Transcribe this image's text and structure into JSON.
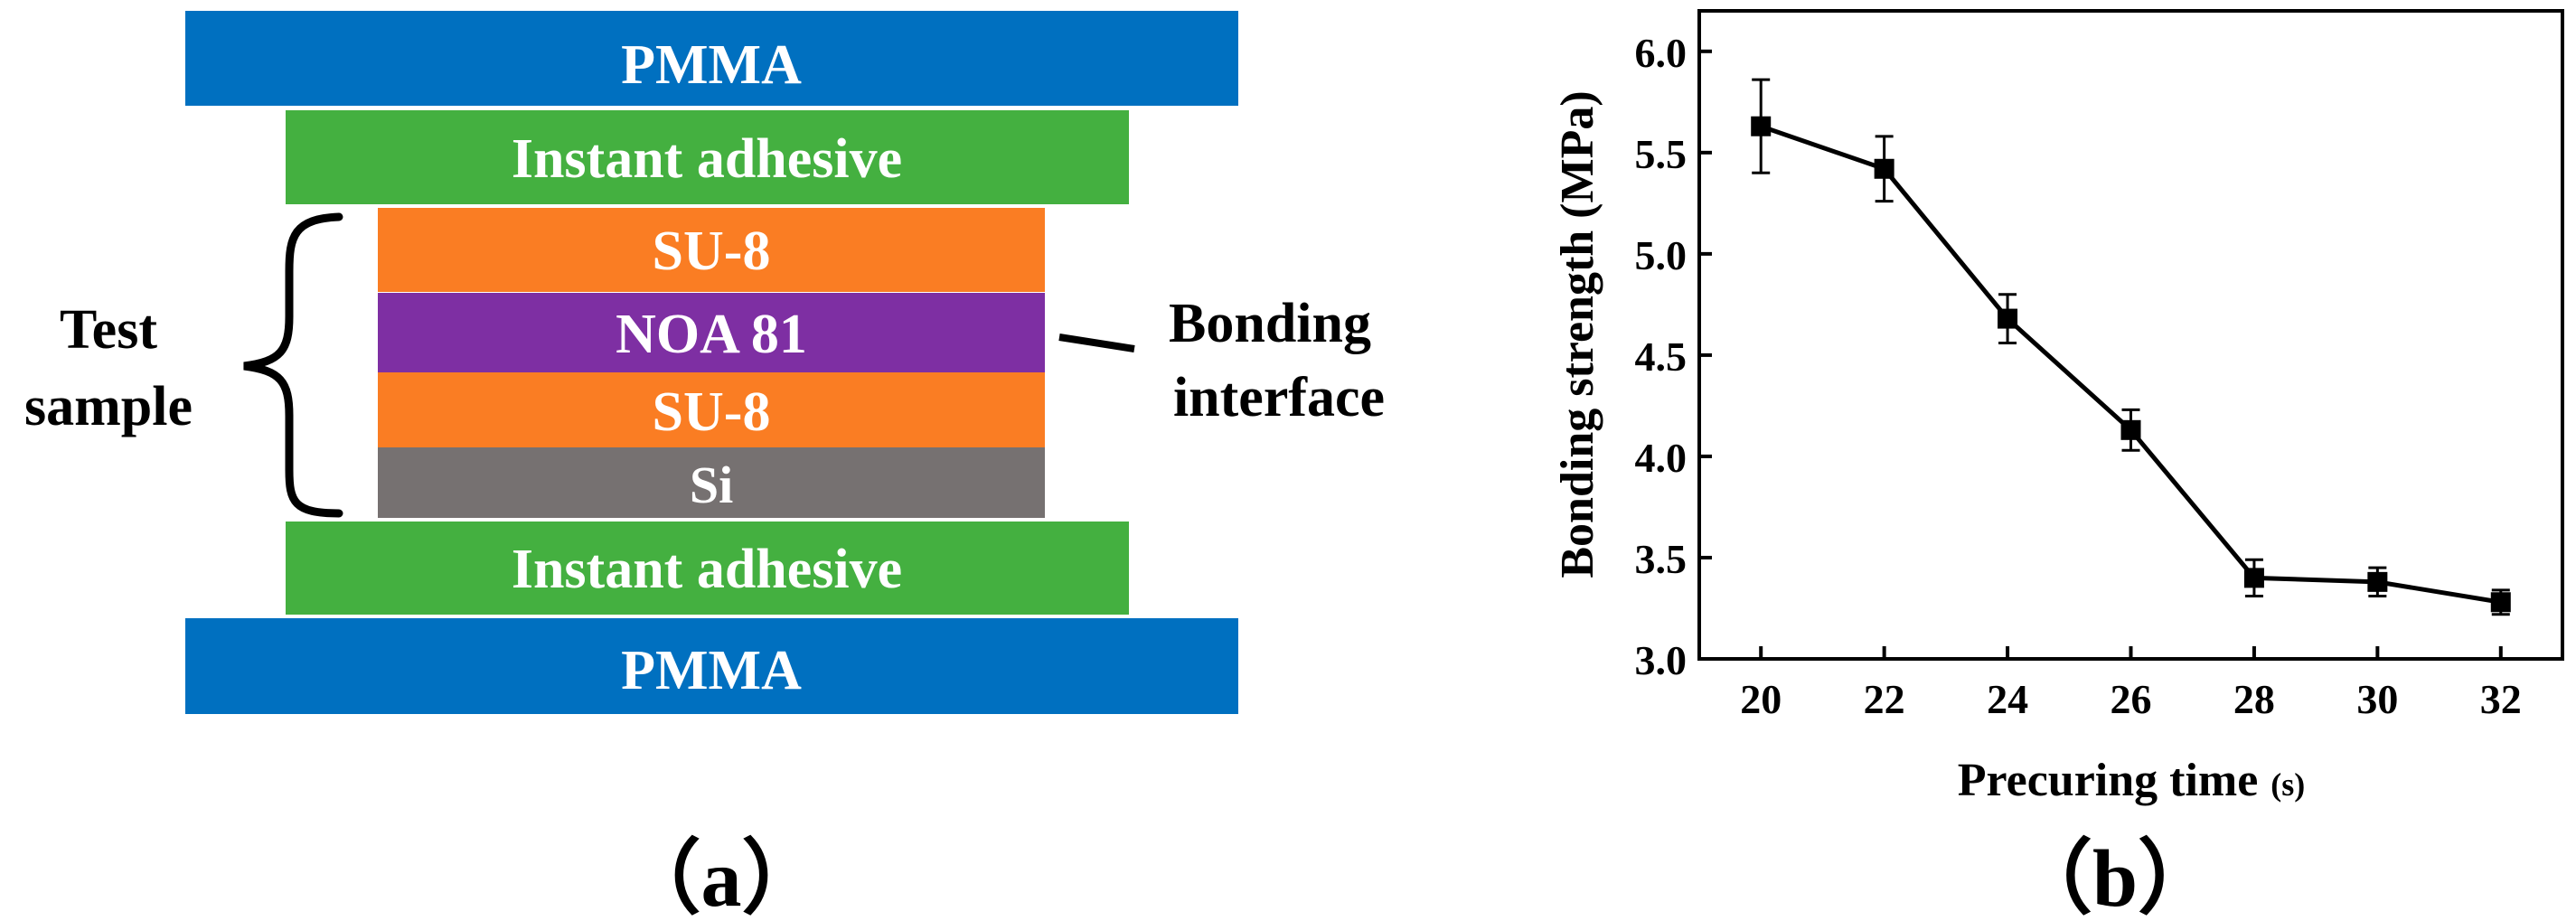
{
  "panel_a": {
    "layers": [
      {
        "id": "pmma-top",
        "label": "PMMA",
        "color": "#0070C0"
      },
      {
        "id": "adhesive-top",
        "label": "Instant adhesive",
        "color": "#44B040"
      },
      {
        "id": "su8-top",
        "label": "SU-8",
        "color": "#FA7D23"
      },
      {
        "id": "noa81",
        "label": "NOA 81",
        "color": "#7E2FA3"
      },
      {
        "id": "su8-bottom",
        "label": "SU-8",
        "color": "#FA7D23"
      },
      {
        "id": "si",
        "label": "Si",
        "color": "#767171"
      },
      {
        "id": "adhesive-bottom",
        "label": "Instant adhesive",
        "color": "#44B040"
      },
      {
        "id": "pmma-bottom",
        "label": "PMMA",
        "color": "#0070C0"
      }
    ],
    "test_sample_label": [
      "Test",
      "sample"
    ],
    "bonding_interface_label": [
      "Bonding",
      "interface"
    ],
    "caption": "（a）"
  },
  "panel_b": {
    "caption": "（b）"
  },
  "chart_data": {
    "type": "line",
    "title": "",
    "xlabel": "Precuring time",
    "xlabel_unit": "(s)",
    "ylabel": "Bonding strength (MPa)",
    "xlim": [
      19,
      33
    ],
    "ylim": [
      3.0,
      6.2
    ],
    "xticks": [
      20,
      22,
      24,
      26,
      28,
      30,
      32
    ],
    "yticks": [
      3.0,
      3.5,
      4.0,
      4.5,
      5.0,
      5.5,
      6.0
    ],
    "xtick_labels": [
      "20",
      "22",
      "24",
      "26",
      "28",
      "30",
      "32"
    ],
    "ytick_labels": [
      "3.0",
      "3.5",
      "4.0",
      "4.5",
      "5.0",
      "5.5",
      "6.0"
    ],
    "series": [
      {
        "name": "Bonding strength",
        "x": [
          20,
          22,
          24,
          26,
          28,
          30,
          32
        ],
        "y": [
          5.63,
          5.42,
          4.68,
          4.13,
          3.4,
          3.38,
          3.28
        ],
        "err": [
          0.23,
          0.16,
          0.12,
          0.1,
          0.09,
          0.07,
          0.06
        ]
      }
    ]
  }
}
